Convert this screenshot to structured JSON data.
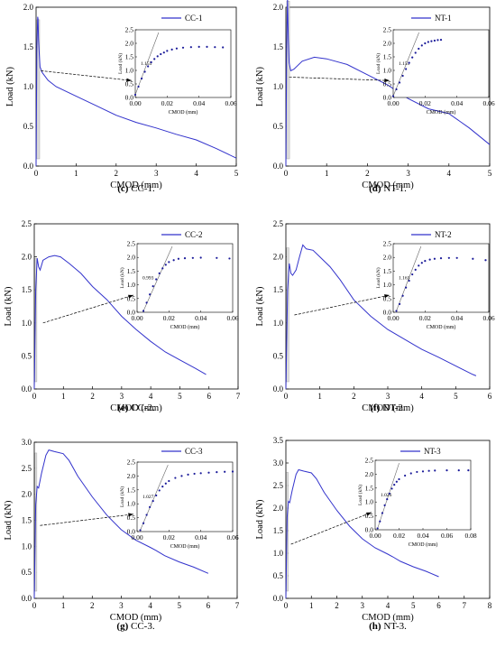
{
  "chart_data": [
    {
      "caption_letter": "(c)",
      "caption_text": " CC-1.",
      "type": "line",
      "xlabel": "CMOD (mm)",
      "ylabel": "Load (kN)",
      "xlim": [
        0,
        5
      ],
      "ylim": [
        0,
        2.0
      ],
      "xticks": [
        0,
        1,
        2,
        3,
        4,
        5
      ],
      "xtick_labels": [
        "0",
        "1",
        "2",
        "3",
        "4",
        "5"
      ],
      "yticks": [
        0,
        0.5,
        1.0,
        1.5,
        2.0
      ],
      "ytick_labels": [
        "0.0",
        "0.5",
        "1.0",
        "1.5",
        "2.0"
      ],
      "legend": "top-right",
      "series": [
        {
          "name": "CC-1",
          "color": "#3333cc",
          "x": [
            0,
            0.02,
            0.04,
            0.05,
            0.06,
            0.08,
            0.1,
            0.15,
            0.3,
            0.5,
            1,
            1.5,
            2,
            2.5,
            3,
            3.5,
            4,
            4.5,
            5
          ],
          "y": [
            0,
            1.5,
            1.88,
            1.85,
            1.6,
            1.4,
            1.25,
            1.18,
            1.08,
            1.0,
            0.88,
            0.76,
            0.64,
            0.55,
            0.48,
            0.4,
            0.33,
            0.22,
            0.1
          ]
        }
      ],
      "inset": {
        "xlim": [
          0,
          0.06
        ],
        "ylim": [
          0,
          2.5
        ],
        "xticks": [
          0,
          0.02,
          0.04,
          0.06
        ],
        "xtick_labels": [
          "0.00",
          "0.02",
          "0.04",
          "0.06"
        ],
        "yticks": [
          0,
          0.5,
          1.0,
          1.5,
          2.0,
          2.5
        ],
        "ytick_labels": [
          "0.0",
          "0.5",
          "1.0",
          "1.5",
          "2.0",
          "2.5"
        ],
        "xlabel": "CMOD (mm)",
        "ylabel": "Load (kN)",
        "slope_label": "1.155",
        "slope": 157,
        "x": [
          0,
          0.002,
          0.004,
          0.006,
          0.008,
          0.01,
          0.012,
          0.014,
          0.016,
          0.018,
          0.02,
          0.023,
          0.026,
          0.03,
          0.035,
          0.04,
          0.045,
          0.05,
          0.055
        ],
        "y": [
          0.1,
          0.4,
          0.7,
          0.95,
          1.15,
          1.3,
          1.42,
          1.52,
          1.6,
          1.66,
          1.72,
          1.77,
          1.81,
          1.84,
          1.86,
          1.87,
          1.87,
          1.86,
          1.85
        ]
      }
    },
    {
      "caption_letter": "(d)",
      "caption_text": " NT-1.",
      "type": "line",
      "xlabel": "CMOD (mm)",
      "ylabel": "Load (kN)",
      "xlim": [
        0,
        5
      ],
      "ylim": [
        0,
        2.0
      ],
      "xticks": [
        0,
        1,
        2,
        3,
        4,
        5
      ],
      "xtick_labels": [
        "0",
        "1",
        "2",
        "3",
        "4",
        "5"
      ],
      "yticks": [
        0,
        0.5,
        1.0,
        1.5,
        2.0
      ],
      "ytick_labels": [
        "0.0",
        "0.5",
        "1.0",
        "1.5",
        "2.0"
      ],
      "legend": "top-right",
      "series": [
        {
          "name": "NT-1",
          "color": "#3333cc",
          "x": [
            0,
            0.02,
            0.04,
            0.06,
            0.08,
            0.12,
            0.2,
            0.4,
            0.7,
            1.0,
            1.5,
            2,
            2.5,
            3,
            3.5,
            4,
            4.5,
            5
          ],
          "y": [
            0,
            1.5,
            2.12,
            1.6,
            1.3,
            1.2,
            1.22,
            1.32,
            1.37,
            1.35,
            1.28,
            1.15,
            1.02,
            0.85,
            0.72,
            0.66,
            0.48,
            0.27
          ]
        }
      ],
      "inset": {
        "xlim": [
          0,
          0.06
        ],
        "ylim": [
          0,
          2.5
        ],
        "xticks": [
          0,
          0.02,
          0.04,
          0.06
        ],
        "xtick_labels": [
          "0.00",
          "0.02",
          "0.04",
          "0.06"
        ],
        "yticks": [
          0,
          0.5,
          1.0,
          1.5,
          2.0,
          2.5
        ],
        "ytick_labels": [
          "0.0",
          "0.5",
          "1.0",
          "1.5",
          "2.0",
          "2.5"
        ],
        "xlabel": "CMOD (mm)",
        "ylabel": "Load (kN)",
        "slope_label": "1.151",
        "slope": 145,
        "x": [
          0,
          0.002,
          0.004,
          0.006,
          0.008,
          0.01,
          0.012,
          0.014,
          0.016,
          0.018,
          0.02,
          0.022,
          0.024,
          0.026,
          0.028,
          0.03
        ],
        "y": [
          0.05,
          0.3,
          0.55,
          0.8,
          1.05,
          1.28,
          1.48,
          1.65,
          1.8,
          1.92,
          2.0,
          2.05,
          2.08,
          2.1,
          2.12,
          2.13
        ]
      }
    },
    {
      "caption_letter": "(e)",
      "caption_text": " CC-2.",
      "type": "line",
      "xlabel": "CMOD (mm)",
      "ylabel": "Load (kN)",
      "xlim": [
        0,
        7
      ],
      "ylim": [
        0,
        2.5
      ],
      "xticks": [
        0,
        1,
        2,
        3,
        4,
        5,
        6,
        7
      ],
      "xtick_labels": [
        "0",
        "1",
        "2",
        "3",
        "4",
        "5",
        "6",
        "7"
      ],
      "yticks": [
        0,
        0.5,
        1.0,
        1.5,
        2.0,
        2.5
      ],
      "ytick_labels": [
        "0.0",
        "0.5",
        "1.0",
        "1.5",
        "2.0",
        "2.5"
      ],
      "legend": "top-right",
      "series": [
        {
          "name": "CC-2",
          "color": "#3333cc",
          "x": [
            0,
            0.05,
            0.1,
            0.15,
            0.2,
            0.3,
            0.5,
            0.7,
            0.9,
            1.2,
            1.6,
            2,
            2.5,
            3,
            3.5,
            4,
            4.5,
            5,
            5.5,
            5.9
          ],
          "y": [
            0,
            1.5,
            1.98,
            1.85,
            1.8,
            1.95,
            2.0,
            2.02,
            2.0,
            1.9,
            1.75,
            1.55,
            1.35,
            1.1,
            0.9,
            0.72,
            0.56,
            0.44,
            0.32,
            0.22
          ]
        }
      ],
      "inset": {
        "xlim": [
          0,
          0.06
        ],
        "ylim": [
          0,
          2.5
        ],
        "xticks": [
          0,
          0.02,
          0.04,
          0.06
        ],
        "xtick_labels": [
          "0.00",
          "0.02",
          "0.04",
          "0.06"
        ],
        "yticks": [
          0,
          0.5,
          1.0,
          1.5,
          2.0,
          2.5
        ],
        "ytick_labels": [
          "0.0",
          "0.5",
          "1.0",
          "1.5",
          "2.0",
          "2.5"
        ],
        "xlabel": "CMOD (mm)",
        "ylabel": "Load (kN)",
        "slope_label": "0.993",
        "slope": 130,
        "x": [
          0.004,
          0.006,
          0.008,
          0.01,
          0.012,
          0.014,
          0.016,
          0.018,
          0.02,
          0.023,
          0.026,
          0.03,
          0.035,
          0.04,
          0.05,
          0.058
        ],
        "y": [
          0.05,
          0.35,
          0.65,
          0.95,
          1.2,
          1.42,
          1.6,
          1.73,
          1.83,
          1.9,
          1.95,
          1.97,
          1.98,
          1.99,
          1.98,
          1.96
        ]
      }
    },
    {
      "caption_letter": "(f)",
      "caption_text": " NT-2.",
      "type": "line",
      "xlabel": "CMOD (mm)",
      "ylabel": "Load (kN)",
      "xlim": [
        0,
        6
      ],
      "ylim": [
        0,
        2.5
      ],
      "xticks": [
        0,
        1,
        2,
        3,
        4,
        5,
        6
      ],
      "xtick_labels": [
        "0",
        "1",
        "2",
        "3",
        "4",
        "5",
        "6"
      ],
      "yticks": [
        0,
        0.5,
        1.0,
        1.5,
        2.0,
        2.5
      ],
      "ytick_labels": [
        "0.0",
        "0.5",
        "1.0",
        "1.5",
        "2.0",
        "2.5"
      ],
      "legend": "top-right",
      "series": [
        {
          "name": "NT-2",
          "color": "#3333cc",
          "x": [
            0,
            0.05,
            0.1,
            0.15,
            0.2,
            0.3,
            0.4,
            0.5,
            0.6,
            0.8,
            1.0,
            1.3,
            1.6,
            2,
            2.5,
            3,
            3.5,
            4,
            4.5,
            5,
            5.5,
            5.6
          ],
          "y": [
            0,
            1.5,
            1.9,
            1.75,
            1.72,
            1.8,
            2.0,
            2.18,
            2.12,
            2.1,
            2.0,
            1.85,
            1.65,
            1.35,
            1.1,
            0.9,
            0.75,
            0.6,
            0.48,
            0.35,
            0.22,
            0.2
          ]
        }
      ],
      "inset": {
        "xlim": [
          0,
          0.06
        ],
        "ylim": [
          0,
          2.5
        ],
        "xticks": [
          0,
          0.02,
          0.04,
          0.06
        ],
        "xtick_labels": [
          "0.00",
          "0.02",
          "0.04",
          "0.06"
        ],
        "yticks": [
          0,
          0.5,
          1.0,
          1.5,
          2.0,
          2.5
        ],
        "ytick_labels": [
          "0.0",
          "0.5",
          "1.0",
          "1.5",
          "2.0",
          "2.5"
        ],
        "xlabel": "CMOD (mm)",
        "ylabel": "Load (kN)",
        "slope_label": "1.163",
        "slope": 152,
        "x": [
          0.002,
          0.004,
          0.006,
          0.008,
          0.01,
          0.012,
          0.014,
          0.016,
          0.018,
          0.02,
          0.023,
          0.026,
          0.03,
          0.035,
          0.04,
          0.05,
          0.058
        ],
        "y": [
          0.05,
          0.3,
          0.6,
          0.9,
          1.15,
          1.38,
          1.55,
          1.7,
          1.8,
          1.87,
          1.92,
          1.95,
          1.97,
          1.98,
          1.98,
          1.95,
          1.9
        ]
      }
    },
    {
      "caption_letter": "(g)",
      "caption_text": " CC-3.",
      "type": "line",
      "xlabel": "CMOD (mm)",
      "ylabel": "Load (kN)",
      "xlim": [
        0,
        7
      ],
      "ylim": [
        0,
        3.0
      ],
      "xticks": [
        0,
        1,
        2,
        3,
        4,
        5,
        6,
        7
      ],
      "xtick_labels": [
        "0",
        "1",
        "2",
        "3",
        "4",
        "5",
        "6",
        "7"
      ],
      "yticks": [
        0,
        0.5,
        1.0,
        1.5,
        2.0,
        2.5,
        3.0
      ],
      "ytick_labels": [
        "0.0",
        "0.5",
        "1.0",
        "1.5",
        "2.0",
        "2.5",
        "3.0"
      ],
      "legend": "top-right",
      "series": [
        {
          "name": "CC-3",
          "color": "#3333cc",
          "x": [
            0,
            0.05,
            0.1,
            0.15,
            0.25,
            0.4,
            0.5,
            0.7,
            1.0,
            1.2,
            1.5,
            2,
            2.5,
            3,
            3.5,
            4,
            4.2,
            4.5,
            5,
            5.5,
            6
          ],
          "y": [
            0,
            1.8,
            2.15,
            2.12,
            2.4,
            2.75,
            2.85,
            2.82,
            2.78,
            2.65,
            2.35,
            1.95,
            1.6,
            1.32,
            1.12,
            0.98,
            0.92,
            0.82,
            0.7,
            0.6,
            0.48
          ]
        }
      ],
      "inset": {
        "xlim": [
          0,
          0.06
        ],
        "ylim": [
          0,
          2.5
        ],
        "xticks": [
          0,
          0.02,
          0.04,
          0.06
        ],
        "xtick_labels": [
          "0.00",
          "0.02",
          "0.04",
          "0.06"
        ],
        "yticks": [
          0,
          0.5,
          1.0,
          1.5,
          2.0,
          2.5
        ],
        "ytick_labels": [
          "0.0",
          "0.5",
          "1.0",
          "1.5",
          "2.0",
          "2.5"
        ],
        "xlabel": "CMOD (mm)",
        "ylabel": "Load (kN)",
        "slope_label": "1.027",
        "slope": 135,
        "x": [
          0.002,
          0.004,
          0.006,
          0.008,
          0.01,
          0.012,
          0.014,
          0.016,
          0.018,
          0.02,
          0.024,
          0.028,
          0.032,
          0.036,
          0.04,
          0.045,
          0.05,
          0.055,
          0.06
        ],
        "y": [
          0.05,
          0.3,
          0.6,
          0.88,
          1.1,
          1.3,
          1.48,
          1.62,
          1.73,
          1.82,
          1.93,
          2.0,
          2.05,
          2.08,
          2.1,
          2.12,
          2.14,
          2.15,
          2.16
        ]
      }
    },
    {
      "caption_letter": "(h)",
      "caption_text": " NT-3.",
      "type": "line",
      "xlabel": "CMOD (mm)",
      "ylabel": "Load (kN)",
      "xlim": [
        0,
        8
      ],
      "ylim": [
        0,
        3.5
      ],
      "xticks": [
        0,
        1,
        2,
        3,
        4,
        5,
        6,
        7,
        8
      ],
      "xtick_labels": [
        "0",
        "1",
        "2",
        "3",
        "4",
        "5",
        "6",
        "7",
        "8"
      ],
      "yticks": [
        0,
        0.5,
        1.0,
        1.5,
        2.0,
        2.5,
        3.0,
        3.5
      ],
      "ytick_labels": [
        "0.0",
        "0.5",
        "1.0",
        "1.5",
        "2.0",
        "2.5",
        "3.0",
        "3.5"
      ],
      "legend": "top-right",
      "series": [
        {
          "name": "NT-3",
          "color": "#3333cc",
          "x": [
            0,
            0.05,
            0.1,
            0.15,
            0.25,
            0.4,
            0.5,
            0.7,
            1.0,
            1.2,
            1.5,
            2,
            2.5,
            3,
            3.5,
            4,
            4.2,
            4.5,
            5,
            5.5,
            6
          ],
          "y": [
            0,
            1.8,
            2.15,
            2.12,
            2.4,
            2.75,
            2.85,
            2.82,
            2.78,
            2.65,
            2.35,
            1.95,
            1.6,
            1.32,
            1.12,
            0.98,
            0.92,
            0.82,
            0.7,
            0.6,
            0.48
          ]
        }
      ],
      "inset": {
        "xlim": [
          0,
          0.08
        ],
        "ylim": [
          0,
          2.5
        ],
        "xticks": [
          0,
          0.02,
          0.04,
          0.06,
          0.08
        ],
        "xtick_labels": [
          "0.00",
          "0.02",
          "0.04",
          "0.06",
          "0.08"
        ],
        "yticks": [
          0,
          0.5,
          1.0,
          1.5,
          2.0,
          2.5
        ],
        "ytick_labels": [
          "0.0",
          "0.5",
          "1.0",
          "1.5",
          "2.0",
          "2.5"
        ],
        "xlabel": "CMOD (mm)",
        "ylabel": "Load (kN)",
        "slope_label": "1.026",
        "slope": 130,
        "x": [
          0.002,
          0.004,
          0.006,
          0.008,
          0.01,
          0.012,
          0.014,
          0.016,
          0.018,
          0.02,
          0.025,
          0.03,
          0.035,
          0.04,
          0.045,
          0.05,
          0.06,
          0.07,
          0.078
        ],
        "y": [
          0.05,
          0.3,
          0.6,
          0.88,
          1.1,
          1.3,
          1.48,
          1.62,
          1.73,
          1.82,
          1.95,
          2.03,
          2.08,
          2.1,
          2.12,
          2.13,
          2.14,
          2.14,
          2.14
        ]
      }
    }
  ],
  "colors": {
    "curve": "#3333cc",
    "inset_dots": "#1a1a99",
    "frame": "#000000",
    "pre_peak_band": "#bbbbbb"
  }
}
